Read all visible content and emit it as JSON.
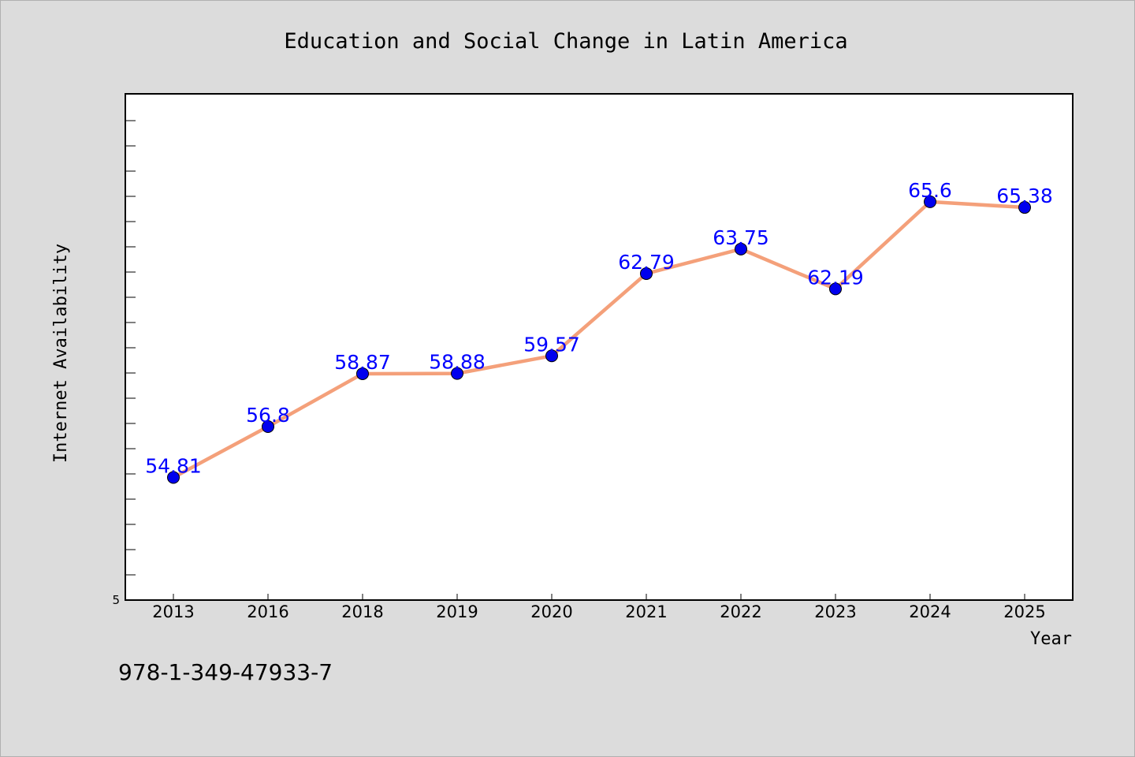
{
  "chart_data": {
    "type": "line",
    "title": "Education and Social Change in Latin America",
    "xlabel": "Year",
    "ylabel": "Internet Availability",
    "categories": [
      "2013",
      "2016",
      "2018",
      "2019",
      "2020",
      "2021",
      "2022",
      "2023",
      "2024",
      "2025"
    ],
    "series": [
      {
        "values": [
          54.81,
          56.8,
          58.87,
          58.88,
          59.57,
          62.79,
          63.75,
          62.19,
          65.6,
          65.38
        ],
        "labels": [
          "54.81",
          "56.8",
          "58.87",
          "58.88",
          "59.57",
          "62.79",
          "63.75",
          "62.19",
          "65.6",
          "65.38"
        ],
        "line_color": "#f4a07a",
        "marker_color": "#0000ee"
      }
    ],
    "ylim": [
      50,
      70
    ],
    "y_tick_labels": [
      "5"
    ],
    "grid": false,
    "legend": "none",
    "colors": {
      "background": "#dcdcdc",
      "plot_area": "#ffffff",
      "data_label": "#0000ff"
    }
  },
  "footer": {
    "isbn": "978-1-349-47933-7"
  }
}
